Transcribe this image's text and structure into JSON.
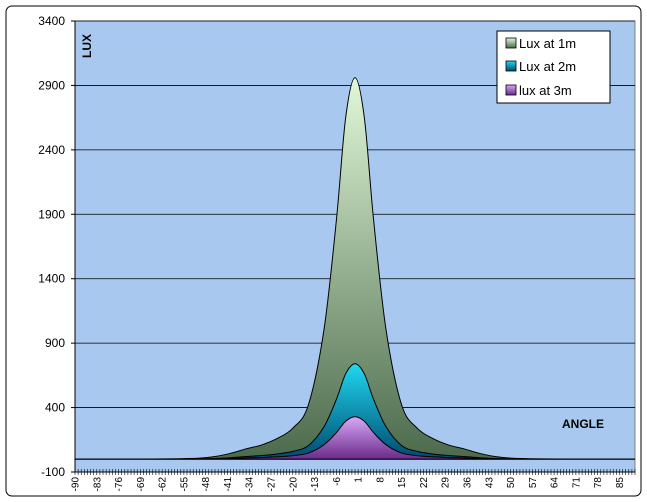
{
  "chart_data": {
    "type": "area",
    "title": "",
    "xlabel": "ANGLE",
    "ylabel": "LUX",
    "ylim": [
      -100,
      3400
    ],
    "yticks": [
      -100,
      400,
      900,
      1400,
      1900,
      2400,
      2900,
      3400
    ],
    "xlim": [
      -90,
      90
    ],
    "x_tick_labels": [
      "-90",
      "-83",
      "-76",
      "-69",
      "-62",
      "-55",
      "-48",
      "-41",
      "-34",
      "-27",
      "-20",
      "-13",
      "-6",
      "1",
      "8",
      "15",
      "22",
      "29",
      "36",
      "43",
      "50",
      "57",
      "64",
      "71",
      "78",
      "85"
    ],
    "grid": true,
    "legend_position": "top-right",
    "x": [
      -90,
      -80,
      -70,
      -60,
      -50,
      -45,
      -40,
      -35,
      -30,
      -25,
      -20,
      -15,
      -10,
      -6,
      -3,
      0,
      3,
      6,
      10,
      15,
      20,
      25,
      30,
      35,
      40,
      45,
      50,
      60,
      70,
      80,
      90
    ],
    "series": [
      {
        "name": "Lux at 1m",
        "values": [
          0,
          0,
          0,
          2,
          8,
          20,
          45,
          80,
          110,
          160,
          240,
          420,
          1000,
          1850,
          2650,
          2960,
          2650,
          1850,
          1000,
          420,
          240,
          160,
          110,
          80,
          45,
          20,
          8,
          2,
          0,
          0,
          0
        ]
      },
      {
        "name": "Lux at 2m",
        "values": [
          0,
          0,
          0,
          0,
          2,
          5,
          11,
          20,
          28,
          40,
          60,
          105,
          250,
          462,
          662,
          740,
          662,
          462,
          250,
          105,
          60,
          40,
          28,
          20,
          11,
          5,
          2,
          0,
          0,
          0,
          0
        ]
      },
      {
        "name": "lux at 3m",
        "values": [
          0,
          0,
          0,
          0,
          1,
          2,
          5,
          9,
          12,
          18,
          27,
          47,
          111,
          205,
          294,
          329,
          294,
          205,
          111,
          47,
          27,
          18,
          12,
          9,
          5,
          2,
          1,
          0,
          0,
          0,
          0
        ]
      }
    ],
    "colors": {
      "plot_background": "#a8c8f0",
      "series_1_top": "#e0f8d8",
      "series_1_bottom": "#4c6a4c",
      "series_2_top": "#20d8f0",
      "series_2_bottom": "#004a70",
      "series_3_top": "#d8a8f8",
      "series_3_bottom": "#6a2a8a"
    }
  }
}
